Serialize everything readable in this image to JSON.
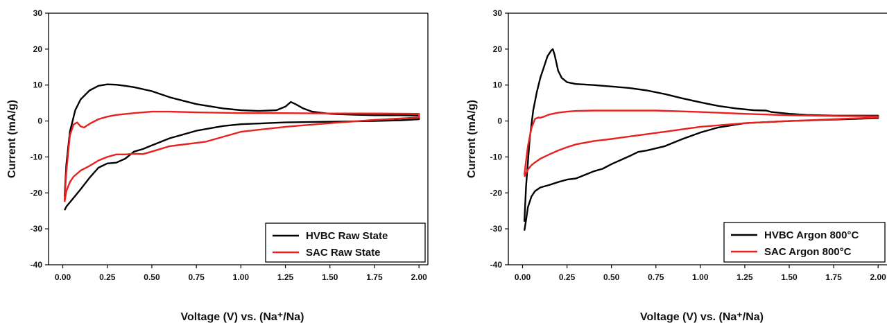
{
  "chart_data": [
    {
      "type": "line",
      "xlabel": "Voltage (V) vs. (Na⁺/Na)",
      "ylabel": "Current (mA/g)",
      "xlim": [
        -0.08,
        2.05
      ],
      "ylim": [
        -40,
        30
      ],
      "xticks": [
        "0.00",
        "0.25",
        "0.50",
        "0.75",
        "1.00",
        "1.25",
        "1.50",
        "1.75",
        "2.00"
      ],
      "yticks": [
        "-40",
        "-30",
        "-20",
        "-10",
        "0",
        "10",
        "20",
        "30"
      ],
      "legend_position": "bottom-right",
      "series": [
        {
          "name": "HVBC Raw State",
          "color": "#000000",
          "x": [
            0.01,
            0.02,
            0.04,
            0.07,
            0.1,
            0.15,
            0.2,
            0.25,
            0.3,
            0.35,
            0.4,
            0.5,
            0.6,
            0.75,
            0.9,
            1.0,
            1.1,
            1.2,
            1.25,
            1.28,
            1.31,
            1.35,
            1.4,
            1.5,
            1.6,
            1.75,
            1.9,
            2.0,
            2.0,
            1.9,
            1.75,
            1.5,
            1.25,
            1.0,
            0.9,
            0.75,
            0.6,
            0.5,
            0.45,
            0.4,
            0.35,
            0.3,
            0.25,
            0.2,
            0.15,
            0.1,
            0.05,
            0.02,
            0.01
          ],
          "y": [
            -21,
            -12,
            -3,
            3,
            6,
            8.5,
            9.8,
            10.2,
            10.1,
            9.8,
            9.4,
            8.3,
            6.6,
            4.7,
            3.5,
            3.0,
            2.8,
            3.0,
            4.0,
            5.3,
            4.6,
            3.5,
            2.6,
            2.0,
            1.8,
            1.6,
            1.6,
            1.5,
            0.5,
            0.2,
            0.0,
            -0.2,
            -0.4,
            -0.9,
            -1.4,
            -2.7,
            -4.8,
            -6.8,
            -7.8,
            -8.5,
            -10.5,
            -11.6,
            -11.8,
            -13.0,
            -15.8,
            -19.0,
            -22.0,
            -23.8,
            -24.8
          ]
        },
        {
          "name": "SAC    Raw State",
          "color": "#e8211f",
          "x": [
            0.01,
            0.02,
            0.04,
            0.06,
            0.08,
            0.1,
            0.12,
            0.15,
            0.2,
            0.25,
            0.3,
            0.4,
            0.5,
            0.6,
            0.75,
            1.0,
            1.25,
            1.5,
            1.75,
            2.0,
            2.0,
            1.75,
            1.5,
            1.25,
            1.0,
            0.8,
            0.6,
            0.5,
            0.45,
            0.4,
            0.35,
            0.3,
            0.25,
            0.2,
            0.15,
            0.1,
            0.06,
            0.04,
            0.02,
            0.01
          ],
          "y": [
            -22,
            -14,
            -4,
            -1.0,
            -0.4,
            -1.5,
            -1.8,
            -0.8,
            0.5,
            1.2,
            1.7,
            2.2,
            2.6,
            2.6,
            2.4,
            2.2,
            2.2,
            2.1,
            2.1,
            2.0,
            1.0,
            0.3,
            -0.6,
            -1.6,
            -3.0,
            -5.8,
            -7.0,
            -8.5,
            -9.2,
            -9.1,
            -9.3,
            -9.3,
            -10.0,
            -11.0,
            -12.5,
            -13.8,
            -15.5,
            -17.0,
            -19.5,
            -22.5
          ]
        }
      ]
    },
    {
      "type": "line",
      "xlabel": "Voltage (V) vs. (Na⁺/Na)",
      "ylabel": "Current (mA/g)",
      "xlim": [
        -0.08,
        2.05
      ],
      "ylim": [
        -40,
        30
      ],
      "xticks": [
        "0.00",
        "0.25",
        "0.50",
        "0.75",
        "1.00",
        "1.25",
        "1.50",
        "1.75",
        "2.00"
      ],
      "yticks": [
        "-40",
        "-30",
        "-20",
        "-10",
        "0",
        "10",
        "20",
        "30"
      ],
      "legend_position": "bottom-right",
      "series": [
        {
          "name": "HVBC Argon 800°C",
          "color": "#000000",
          "x": [
            0.01,
            0.02,
            0.04,
            0.06,
            0.08,
            0.1,
            0.12,
            0.14,
            0.16,
            0.17,
            0.18,
            0.2,
            0.22,
            0.25,
            0.3,
            0.4,
            0.5,
            0.6,
            0.7,
            0.8,
            0.9,
            1.0,
            1.1,
            1.2,
            1.3,
            1.37,
            1.4,
            1.5,
            1.6,
            1.75,
            2.0,
            2.0,
            1.75,
            1.5,
            1.25,
            1.1,
            1.0,
            0.9,
            0.8,
            0.7,
            0.65,
            0.6,
            0.5,
            0.45,
            0.4,
            0.35,
            0.3,
            0.25,
            0.2,
            0.15,
            0.1,
            0.07,
            0.05,
            0.03,
            0.02,
            0.01
          ],
          "y": [
            -28,
            -18,
            -5,
            3,
            8,
            12,
            15,
            18,
            19.5,
            20,
            18.5,
            14,
            12,
            10.8,
            10.3,
            10,
            9.6,
            9.2,
            8.5,
            7.5,
            6.3,
            5.2,
            4.2,
            3.5,
            3.0,
            2.9,
            2.5,
            2.0,
            1.7,
            1.5,
            1.5,
            0.8,
            0.4,
            0.0,
            -0.6,
            -1.8,
            -3.2,
            -5.0,
            -7.0,
            -8.2,
            -8.6,
            -9.8,
            -12.0,
            -13.3,
            -14.0,
            -15.0,
            -16.0,
            -16.3,
            -17.0,
            -17.8,
            -18.5,
            -19.5,
            -21.0,
            -24.0,
            -27.5,
            -30.5
          ]
        },
        {
          "name": "SAC    Argon 800°C",
          "color": "#e8211f",
          "x": [
            0.01,
            0.02,
            0.03,
            0.05,
            0.07,
            0.09,
            0.1,
            0.12,
            0.15,
            0.2,
            0.25,
            0.3,
            0.4,
            0.5,
            0.6,
            0.75,
            1.0,
            1.25,
            1.5,
            1.75,
            2.0,
            2.0,
            1.75,
            1.5,
            1.25,
            1.0,
            0.8,
            0.6,
            0.5,
            0.4,
            0.3,
            0.25,
            0.2,
            0.15,
            0.1,
            0.07,
            0.05,
            0.03,
            0.02,
            0.01
          ],
          "y": [
            -15,
            -11,
            -7,
            -2,
            0.6,
            1.0,
            0.9,
            1.2,
            1.8,
            2.3,
            2.6,
            2.8,
            2.9,
            2.9,
            2.9,
            2.9,
            2.5,
            2.0,
            1.6,
            1.4,
            1.3,
            1.0,
            0.5,
            0.0,
            -0.6,
            -1.6,
            -3.0,
            -4.3,
            -5.0,
            -5.6,
            -6.5,
            -7.3,
            -8.2,
            -9.3,
            -10.5,
            -11.5,
            -12.3,
            -13.5,
            -14.5,
            -15.5
          ]
        }
      ]
    }
  ]
}
